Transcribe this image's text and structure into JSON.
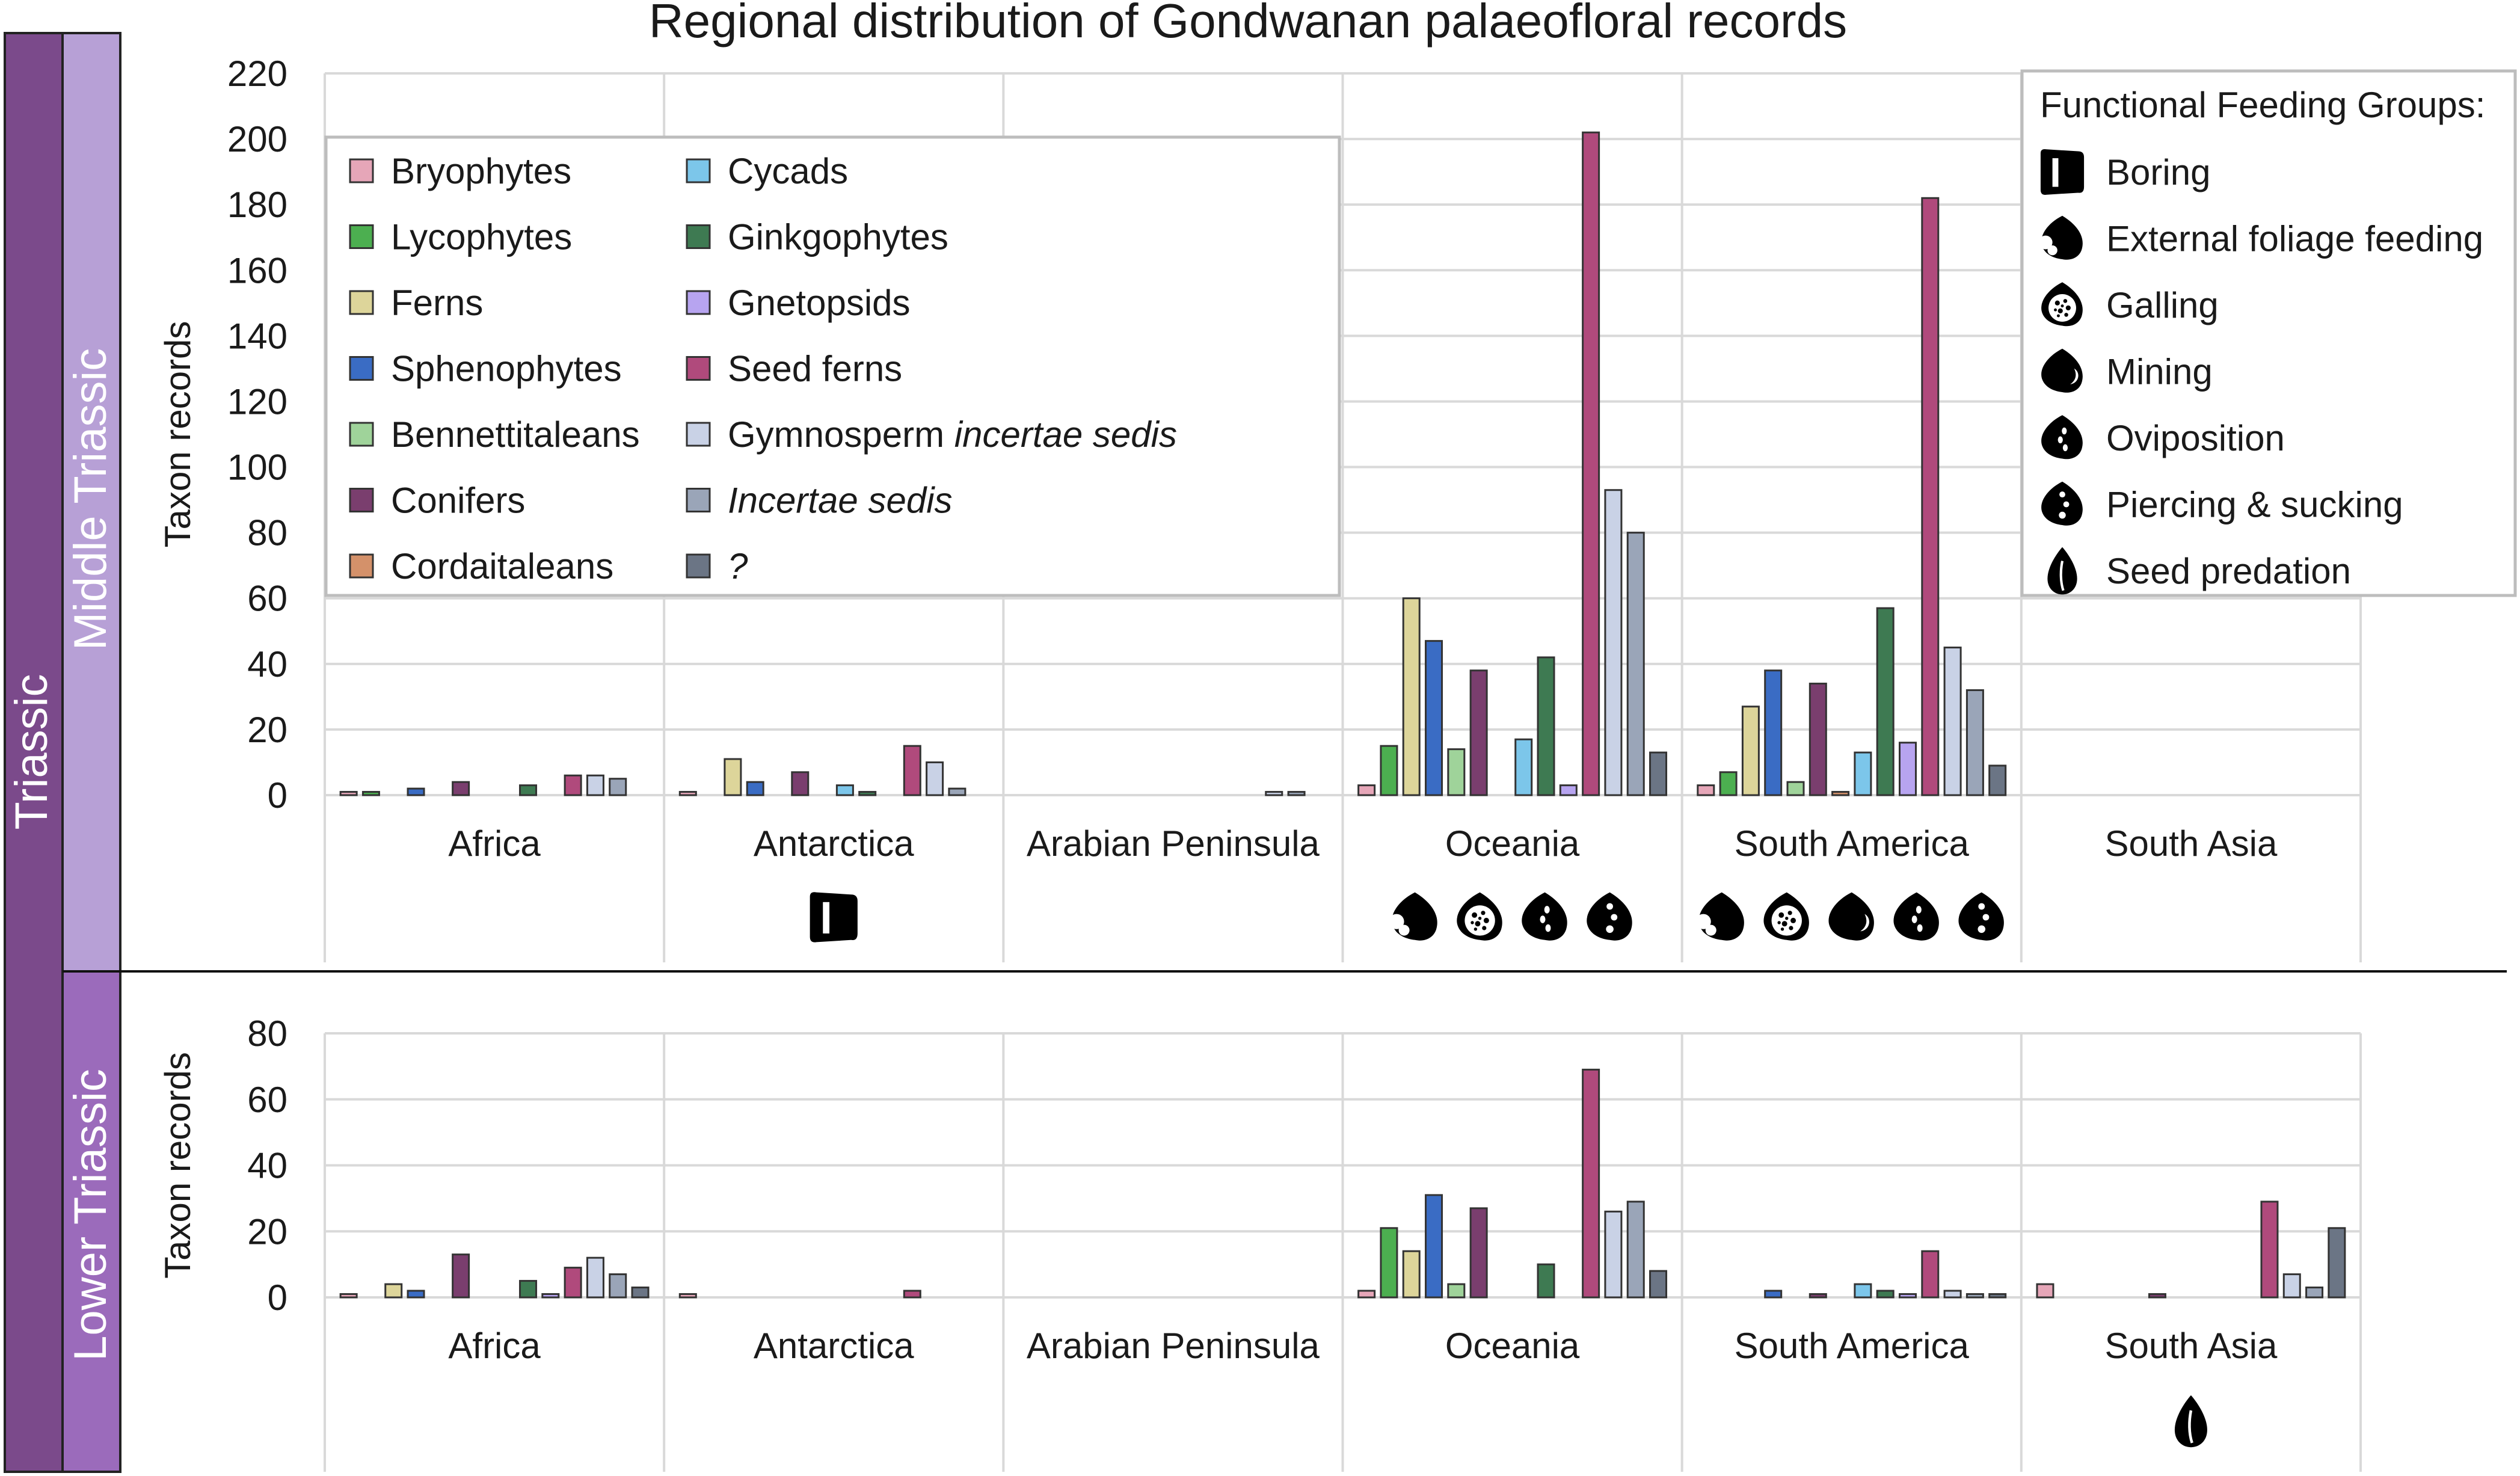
{
  "chart_data": {
    "type": "bar",
    "title": "Regional distribution of Gondwanan  palaeofloral records",
    "ylabel": "Taxon records",
    "eras": {
      "outer": "Triassic",
      "upper": "Middle Triassic",
      "lower": "Lower Triassic"
    },
    "regions": [
      "Africa",
      "Antarctica",
      "Arabian Peninsula",
      "Oceania",
      "South America",
      "South Asia"
    ],
    "groups": [
      {
        "name": "Bryophytes",
        "color": "#e6a6b8"
      },
      {
        "name": "Lycophytes",
        "color": "#4caf50"
      },
      {
        "name": "Ferns",
        "color": "#ddd59a"
      },
      {
        "name": "Sphenophytes",
        "color": "#3a6cc4"
      },
      {
        "name": "Bennettitaleans",
        "color": "#9fd39a"
      },
      {
        "name": "Conifers",
        "color": "#7a3e6e"
      },
      {
        "name": "Cordaitaleans",
        "color": "#d4916a"
      },
      {
        "name": "Cycads",
        "color": "#7cc6ea"
      },
      {
        "name": "Ginkgophytes",
        "color": "#3e7a52"
      },
      {
        "name": "Gnetopsids",
        "color": "#b7a4f0"
      },
      {
        "name": "Seed ferns",
        "color": "#b04a7c"
      },
      {
        "name": "Gymnosperm",
        "italic_suffix": "incertae sedis",
        "color": "#c9d2e6"
      },
      {
        "name": "",
        "italic_suffix": "Incertae sedis",
        "color": "#9aa5b8"
      },
      {
        "name": "",
        "italic_suffix": "?",
        "color": "#6b7585"
      }
    ],
    "panels": [
      {
        "name": "Middle Triassic",
        "ylim": [
          0,
          220
        ],
        "yticks": [
          0,
          20,
          40,
          60,
          80,
          100,
          120,
          140,
          160,
          180,
          200,
          220
        ],
        "values": {
          "Africa": [
            1,
            1,
            0,
            2,
            0,
            4,
            0,
            0,
            3,
            0,
            6,
            6,
            5,
            0
          ],
          "Antarctica": [
            1,
            0,
            11,
            4,
            0,
            7,
            0,
            3,
            1,
            0,
            15,
            10,
            2,
            0
          ],
          "Arabian Peninsula": [
            0,
            0,
            0,
            0,
            0,
            0,
            0,
            0,
            0,
            0,
            0,
            1,
            1,
            0
          ],
          "Oceania": [
            3,
            15,
            60,
            47,
            14,
            38,
            0,
            17,
            42,
            3,
            202,
            93,
            80,
            13
          ],
          "South America": [
            3,
            7,
            27,
            38,
            4,
            34,
            1,
            13,
            57,
            16,
            182,
            45,
            32,
            9
          ],
          "South Asia": [
            0,
            0,
            0,
            0,
            0,
            0,
            0,
            0,
            0,
            0,
            0,
            0,
            0,
            0
          ]
        },
        "feeding": {
          "Africa": [],
          "Antarctica": [
            "boring-icon"
          ],
          "Arabian Peninsula": [],
          "Oceania": [
            "external-foliage-feeding-icon",
            "galling-icon",
            "oviposition-icon",
            "piercing-sucking-icon"
          ],
          "South America": [
            "external-foliage-feeding-icon",
            "galling-icon",
            "mining-icon",
            "oviposition-icon",
            "piercing-sucking-icon"
          ],
          "South Asia": []
        }
      },
      {
        "name": "Lower Triassic",
        "ylim": [
          0,
          80
        ],
        "yticks": [
          0,
          20,
          40,
          60,
          80
        ],
        "values": {
          "Africa": [
            1,
            0,
            4,
            2,
            0,
            13,
            0,
            0,
            5,
            1,
            9,
            12,
            7,
            3
          ],
          "Antarctica": [
            1,
            0,
            0,
            0,
            0,
            0,
            0,
            0,
            0,
            0,
            2,
            0,
            0,
            0
          ],
          "Arabian Peninsula": [
            0,
            0,
            0,
            0,
            0,
            0,
            0,
            0,
            0,
            0,
            0,
            0,
            0,
            0
          ],
          "Oceania": [
            2,
            21,
            14,
            31,
            4,
            27,
            0,
            0,
            10,
            0,
            69,
            26,
            29,
            8
          ],
          "South America": [
            0,
            0,
            0,
            2,
            0,
            1,
            0,
            4,
            2,
            1,
            14,
            2,
            1,
            1
          ],
          "South Asia": [
            4,
            0,
            0,
            0,
            0,
            1,
            0,
            0,
            0,
            0,
            29,
            7,
            3,
            21
          ]
        },
        "feeding": {
          "Africa": [],
          "Antarctica": [],
          "Arabian Peninsula": [],
          "Oceania": [],
          "South America": [],
          "South Asia": [
            "seed-predation-icon"
          ]
        }
      }
    ],
    "ffg_legend": {
      "title": "Functional Feeding Groups:",
      "items": [
        {
          "name": "Boring",
          "icon": "boring-icon"
        },
        {
          "name": "External foliage feeding",
          "icon": "external-foliage-feeding-icon"
        },
        {
          "name": "Galling",
          "icon": "galling-icon"
        },
        {
          "name": "Mining",
          "icon": "mining-icon"
        },
        {
          "name": "Oviposition",
          "icon": "oviposition-icon"
        },
        {
          "name": "Piercing & sucking",
          "icon": "piercing-sucking-icon"
        },
        {
          "name": "Seed predation",
          "icon": "seed-predation-icon"
        }
      ]
    }
  }
}
